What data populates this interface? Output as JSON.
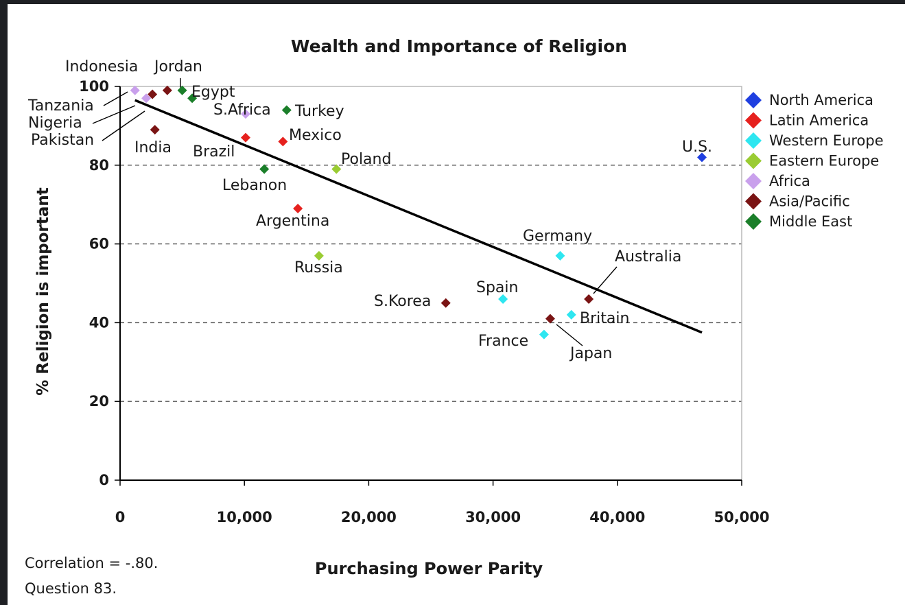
{
  "chart_data": {
    "type": "scatter",
    "title": "Wealth and Importance of Religion",
    "xlabel": "Purchasing Power Parity",
    "ylabel": "% Religion is important",
    "xlim": [
      0,
      50000
    ],
    "ylim": [
      0,
      100
    ],
    "xticks": [
      0,
      10000,
      20000,
      30000,
      40000,
      50000
    ],
    "xtick_labels": [
      "0",
      "10,000",
      "20,000",
      "30,000",
      "40,000",
      "50,000"
    ],
    "yticks": [
      0,
      20,
      40,
      60,
      80,
      100
    ],
    "ytick_labels": [
      "0",
      "20",
      "40",
      "60",
      "80",
      "100"
    ],
    "grid": "horizontal dashed",
    "legend_position": "right",
    "trendline": {
      "x": [
        1200,
        46800
      ],
      "y": [
        96.5,
        37.5
      ]
    },
    "series": [
      {
        "name": "North America",
        "color": "#1f3fe0",
        "points": [
          {
            "label": "U.S.",
            "x": 46800,
            "y": 82
          }
        ]
      },
      {
        "name": "Latin America",
        "color": "#e6211e",
        "points": [
          {
            "label": "Brazil",
            "x": 10100,
            "y": 87
          },
          {
            "label": "Mexico",
            "x": 13100,
            "y": 86
          },
          {
            "label": "Argentina",
            "x": 14300,
            "y": 69
          }
        ]
      },
      {
        "name": "Western Europe",
        "color": "#2ee6f0",
        "points": [
          {
            "label": "Germany",
            "x": 35400,
            "y": 57
          },
          {
            "label": "Spain",
            "x": 30800,
            "y": 46
          },
          {
            "label": "Britain",
            "x": 36300,
            "y": 42
          },
          {
            "label": "France",
            "x": 34100,
            "y": 37
          }
        ]
      },
      {
        "name": "Eastern Europe",
        "color": "#9acc33",
        "points": [
          {
            "label": "Poland",
            "x": 17400,
            "y": 79
          },
          {
            "label": "Russia",
            "x": 16000,
            "y": 57
          }
        ]
      },
      {
        "name": "Africa",
        "color": "#c9a0ec",
        "points": [
          {
            "label": "Tanzania",
            "x": 1200,
            "y": 99
          },
          {
            "label": "Nigeria",
            "x": 2100,
            "y": 97
          },
          {
            "label": "S.Africa",
            "x": 10100,
            "y": 93
          }
        ]
      },
      {
        "name": "Asia/Pacific",
        "color": "#7a1414",
        "points": [
          {
            "label": "Indonesia",
            "x": 3800,
            "y": 99
          },
          {
            "label": "Pakistan",
            "x": 2600,
            "y": 98
          },
          {
            "label": "India",
            "x": 2800,
            "y": 89
          },
          {
            "label": "S.Korea",
            "x": 26200,
            "y": 45
          },
          {
            "label": "Australia",
            "x": 37700,
            "y": 46
          },
          {
            "label": "Japan",
            "x": 34600,
            "y": 41
          }
        ]
      },
      {
        "name": "Middle East",
        "color": "#1b7f2a",
        "points": [
          {
            "label": "Jordan",
            "x": 5000,
            "y": 99
          },
          {
            "label": "Egypt",
            "x": 5800,
            "y": 97
          },
          {
            "label": "Turkey",
            "x": 13400,
            "y": 94
          },
          {
            "label": "Lebanon",
            "x": 11600,
            "y": 79
          }
        ]
      }
    ]
  },
  "notes": {
    "correlation": "Correlation = -.80.",
    "question": "Question 83."
  }
}
